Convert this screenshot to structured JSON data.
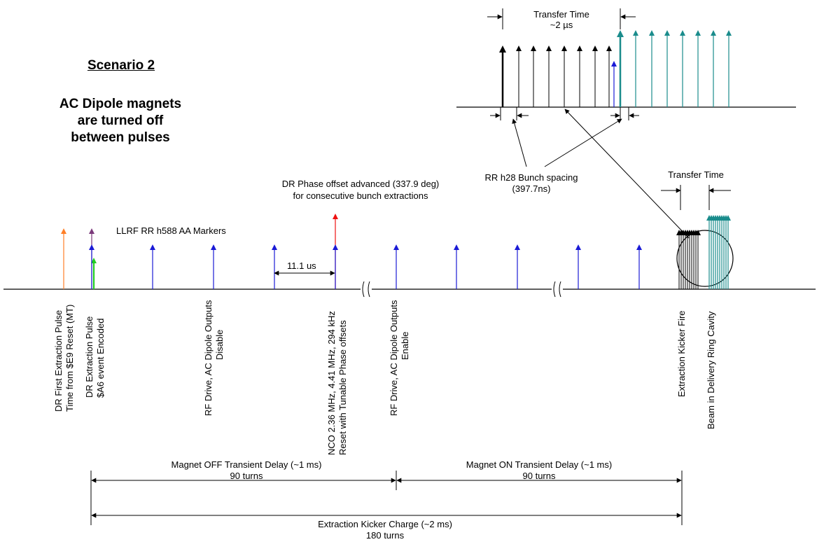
{
  "scenario": {
    "title": "Scenario 2",
    "subtitle_lines": [
      "AC Dipole magnets",
      "are turned off",
      "between pulses"
    ]
  },
  "inset": {
    "transfer_time_label": "Transfer Time",
    "transfer_time_value": "~2 µs"
  },
  "bunch_spacing": {
    "line1": "RR h28 Bunch spacing",
    "line2": "(397.7ns)"
  },
  "transfer_time_right": "Transfer Time",
  "phase_offset": {
    "line1": "DR Phase offset advanced (337.9 deg)",
    "line2": "for consecutive bunch extractions"
  },
  "llrf_markers": "LLRF RR h588 AA Markers",
  "marker_interval": "11.1 us",
  "event_labels": {
    "first_extraction": [
      "DR First Extraction Pulse",
      "Time from $E9 Reset (MT)"
    ],
    "extraction_pulse": [
      "DR Extraction Pulse",
      "$A6 event Encoded"
    ],
    "rf_disable": [
      "RF Drive, AC Dipole Outputs",
      "Disable"
    ],
    "nco": [
      "NCO 2.36 MHz, 4.41 MHz, 294 kHz",
      "Reset with Tunable Phase offsets"
    ],
    "rf_enable": [
      "RF Drive, AC Dipole Outputs",
      "Enable"
    ],
    "kicker_fire": "Extraction Kicker Fire",
    "beam": "Beam in Delivery Ring Cavity"
  },
  "spans": {
    "magnet_off": {
      "line1": "Magnet OFF Transient Delay (~1 ms)",
      "line2": "90 turns"
    },
    "magnet_on": {
      "line1": "Magnet ON Transient Delay (~1 ms)",
      "line2": "90 turns"
    },
    "kicker_charge": {
      "line1": "Extraction Kicker Charge (~2 ms)",
      "line2": "180 turns"
    }
  },
  "colors": {
    "marker_blue": "#1a1ad6",
    "orange": "#ff7f27",
    "purple": "#7b3a7b",
    "green": "#22cc22",
    "red": "#ee1111",
    "teal": "#1a8c8c",
    "black": "#000000"
  }
}
